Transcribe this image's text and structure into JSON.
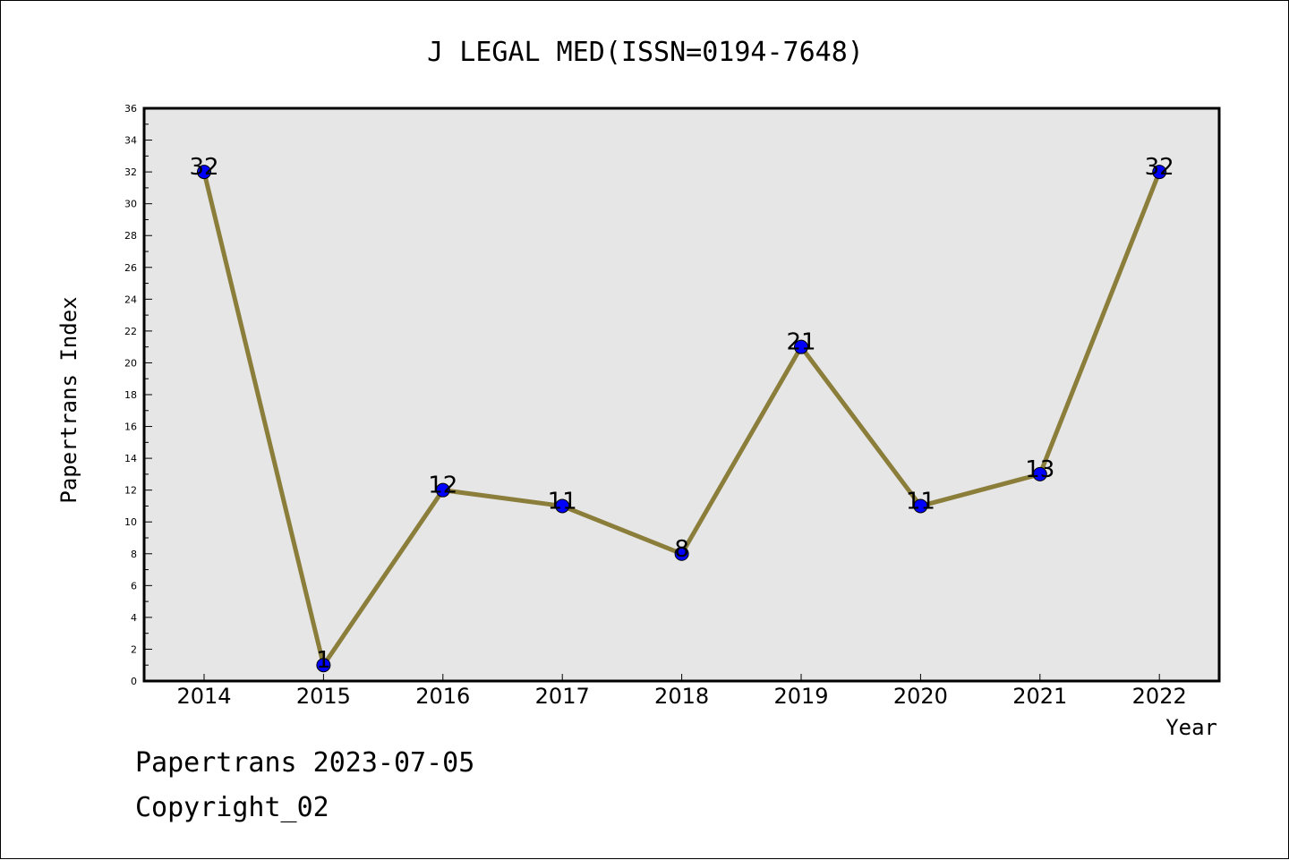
{
  "chart_data": {
    "type": "line",
    "title": "J LEGAL MED(ISSN=0194-7648)",
    "xlabel": "Year",
    "ylabel": "Papertrans Index",
    "categories": [
      "2014",
      "2015",
      "2016",
      "2017",
      "2018",
      "2019",
      "2020",
      "2021",
      "2022"
    ],
    "values": [
      32,
      1,
      12,
      11,
      8,
      21,
      11,
      13,
      32
    ],
    "data_labels": [
      "32",
      "1",
      "12",
      "11",
      "8",
      "21",
      "11",
      "13",
      "32"
    ],
    "ylim": [
      0,
      36
    ],
    "yticks": [
      "0",
      "2",
      "4",
      "6",
      "8",
      "10",
      "12",
      "14",
      "16",
      "18",
      "20",
      "22",
      "24",
      "26",
      "28",
      "30",
      "32",
      "34",
      "36"
    ],
    "grid": false,
    "legend": "none",
    "colors": {
      "line": "#8b7d3a",
      "marker": "#0000ff",
      "plot_background": "#e6e6e6"
    }
  },
  "footer": {
    "date_line": "Papertrans 2023-07-05",
    "copyright": "Copyright_02"
  }
}
